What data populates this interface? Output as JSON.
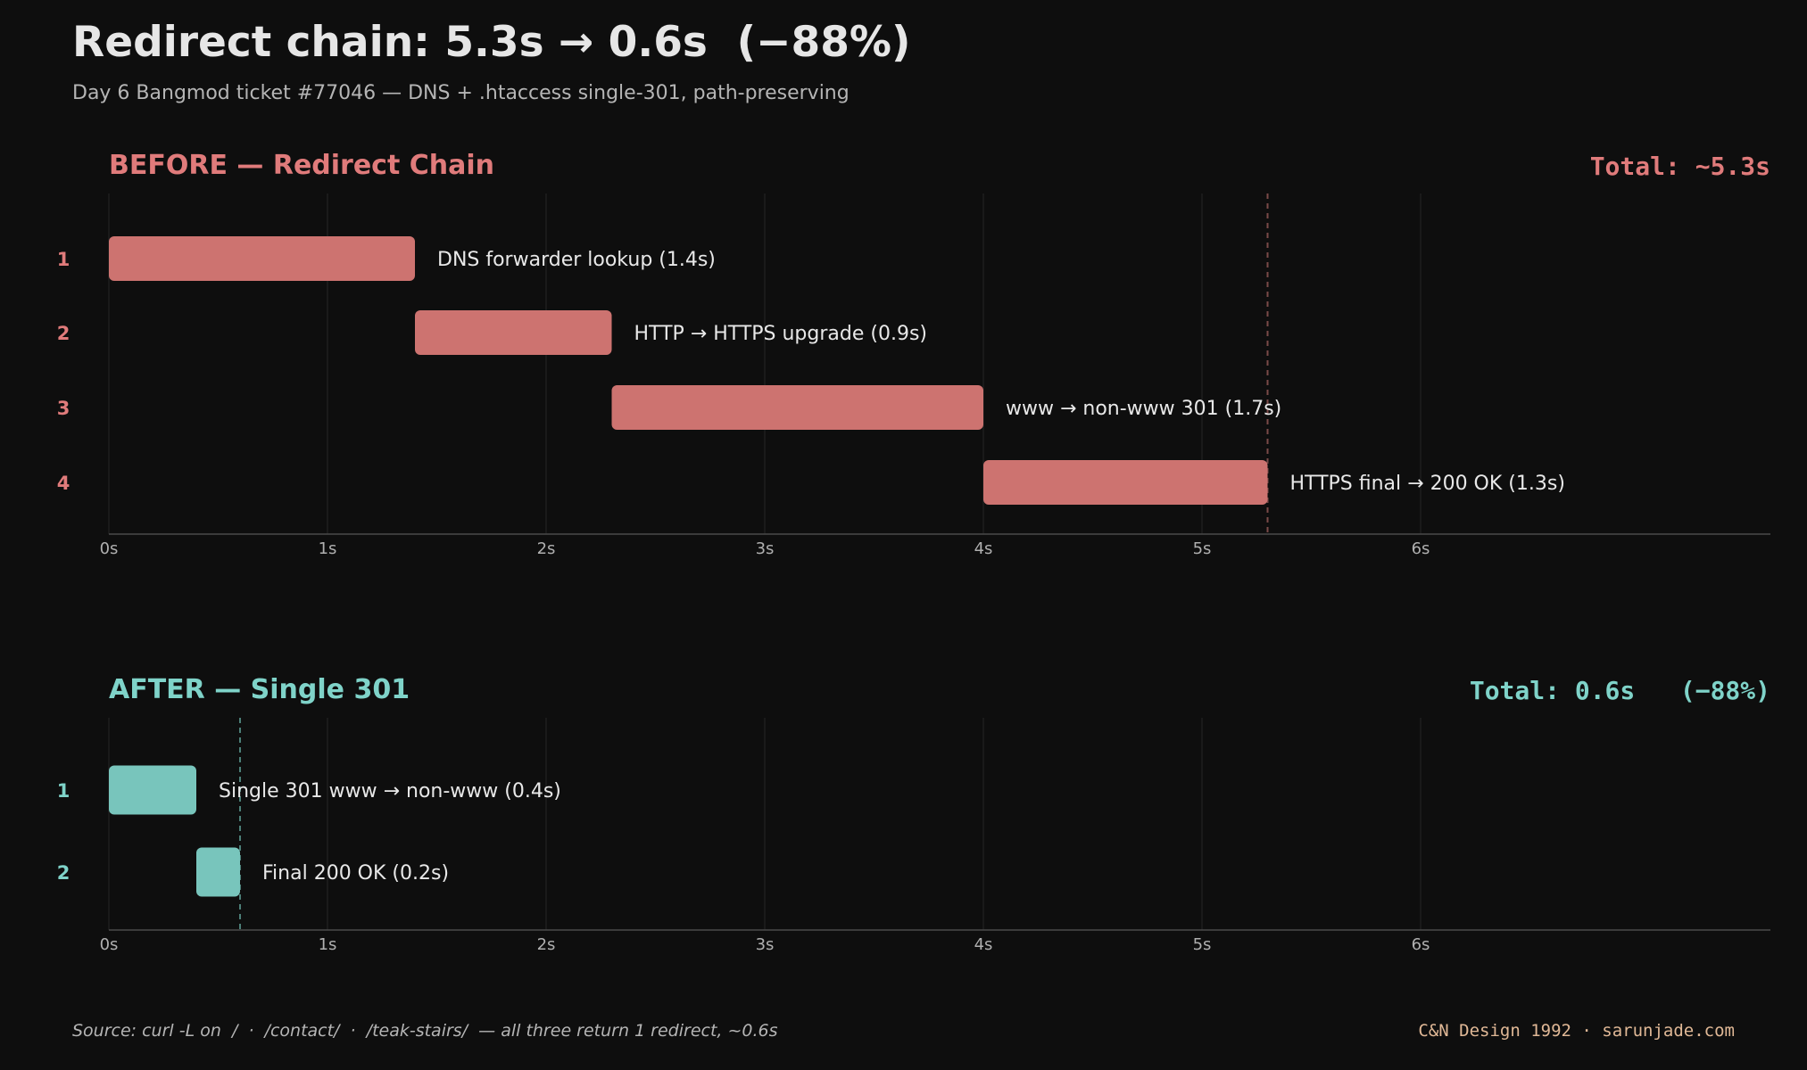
{
  "header": {
    "title": "Redirect chain: 5.3s → 0.6s  (−88%)",
    "subtitle": "Day 6 Bangmod ticket #77046 — DNS + .htaccess single-301, path-preserving"
  },
  "colors": {
    "background": "#0e0e0e",
    "before": "#e07b7b",
    "before_bar": "#cd7370",
    "after": "#7fd3c9",
    "after_bar": "#78c5bc",
    "credit": "#e0b896"
  },
  "chart_data": [
    {
      "type": "bar",
      "orientation": "horizontal-gantt",
      "title": "BEFORE — Redirect Chain",
      "total_label": "Total: ~5.3s",
      "xlim": [
        0,
        7.6
      ],
      "x_ticks": [
        "0s",
        "1s",
        "2s",
        "3s",
        "4s",
        "5s",
        "6s"
      ],
      "x_tick_values": [
        0,
        1,
        2,
        3,
        4,
        5,
        6
      ],
      "grid": true,
      "total_marker": 5.3,
      "rows": [
        {
          "index": "1",
          "start": 0.0,
          "duration": 1.4,
          "label": "DNS forwarder lookup  (1.4s)"
        },
        {
          "index": "2",
          "start": 1.4,
          "duration": 0.9,
          "label": "HTTP → HTTPS upgrade  (0.9s)"
        },
        {
          "index": "3",
          "start": 2.3,
          "duration": 1.7,
          "label": "www → non-www  301  (1.7s)"
        },
        {
          "index": "4",
          "start": 4.0,
          "duration": 1.3,
          "label": "HTTPS final → 200 OK  (1.3s)"
        }
      ]
    },
    {
      "type": "bar",
      "orientation": "horizontal-gantt",
      "title": "AFTER — Single 301",
      "total_label": "Total: 0.6s   (−88%)",
      "xlim": [
        0,
        7.6
      ],
      "x_ticks": [
        "0s",
        "1s",
        "2s",
        "3s",
        "4s",
        "5s",
        "6s"
      ],
      "x_tick_values": [
        0,
        1,
        2,
        3,
        4,
        5,
        6
      ],
      "grid": true,
      "total_marker": 0.6,
      "rows": [
        {
          "index": "1",
          "start": 0.0,
          "duration": 0.4,
          "label": "Single 301  www → non-www  (0.4s)"
        },
        {
          "index": "2",
          "start": 0.4,
          "duration": 0.2,
          "label": "Final 200 OK  (0.2s)"
        }
      ]
    }
  ],
  "footer": {
    "source": "Source: curl -L on  /  ·  /contact/  ·  /teak-stairs/  — all three return 1 redirect, ~0.6s",
    "credit": "C&N Design 1992 · sarunjade.com"
  }
}
